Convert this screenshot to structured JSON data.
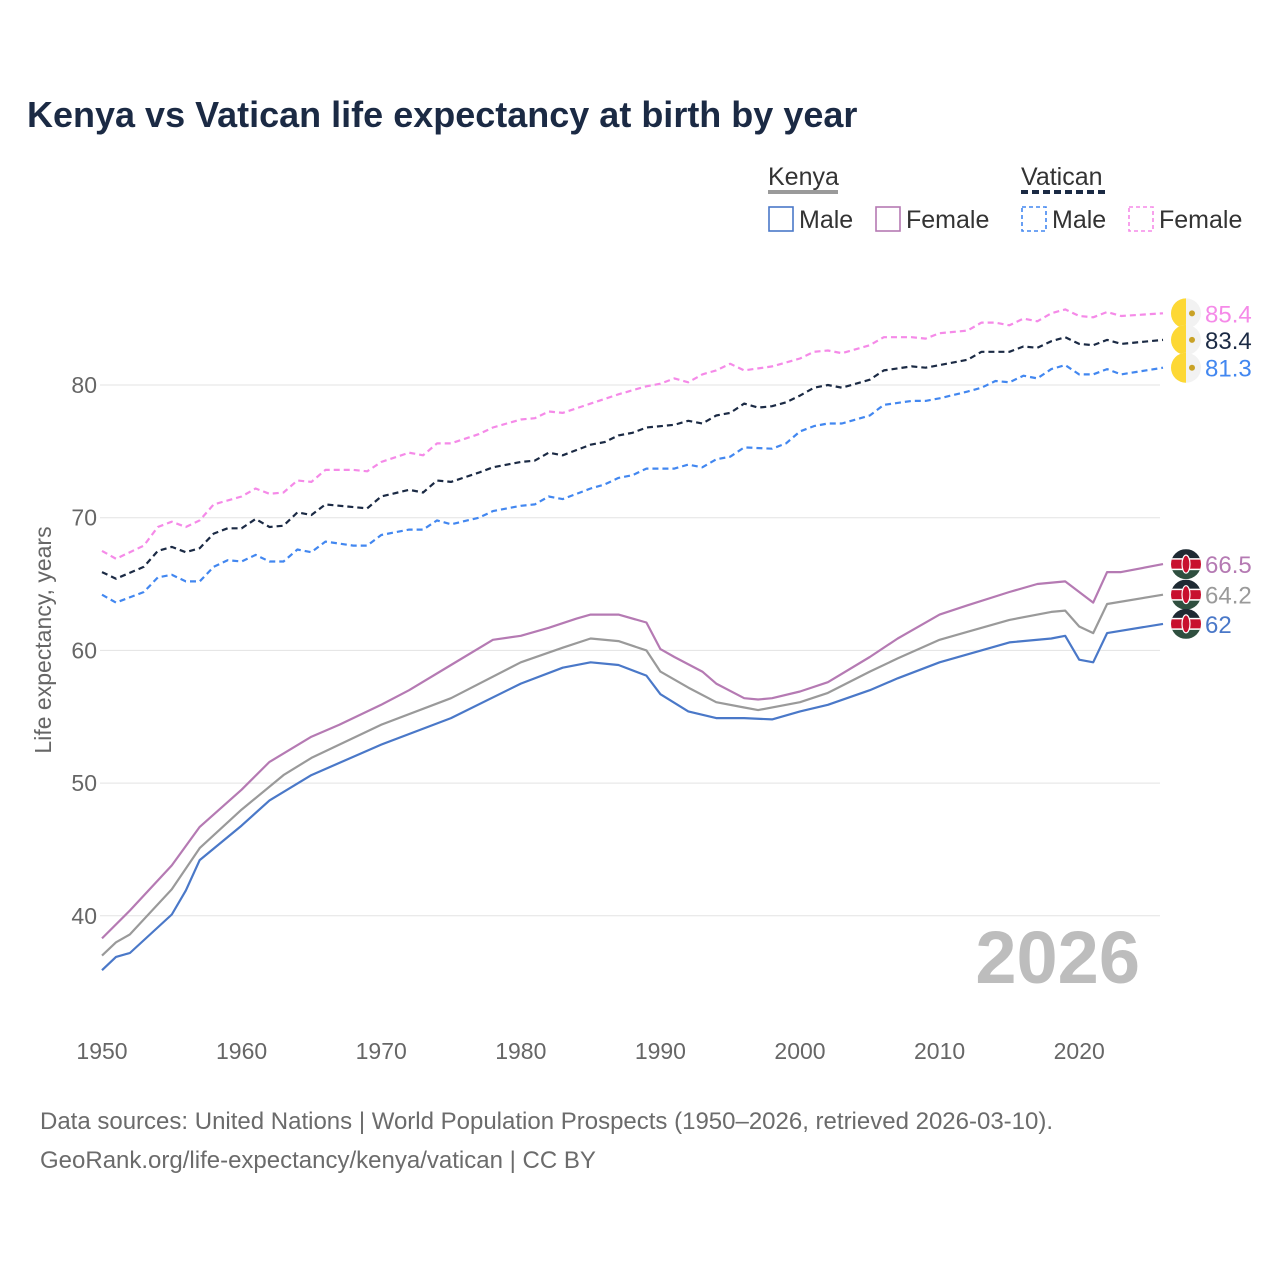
{
  "chart_data": {
    "type": "line",
    "title": "Kenya vs Vatican life expectancy at birth by year",
    "xlabel": "",
    "ylabel": "Life expectancy, years",
    "xlim": [
      1950,
      2026
    ],
    "ylim": [
      34.5,
      87
    ],
    "xticks": [
      "1950",
      "1960",
      "1970",
      "1980",
      "1990",
      "2000",
      "2010",
      "2020"
    ],
    "yticks": [
      "40",
      "50",
      "60",
      "70",
      "80"
    ],
    "grid": true,
    "year_watermark": "2026",
    "legend": {
      "placement": "top-right",
      "groups": [
        {
          "name": "Kenya",
          "items": [
            "Male",
            "Female"
          ]
        },
        {
          "name": "Vatican",
          "items": [
            "Male",
            "Female"
          ]
        }
      ]
    },
    "series": [
      {
        "name": "Vatican Female",
        "color": "#f58ae8",
        "dashed": true,
        "end_label": "85.4",
        "flag": "vatican",
        "points": [
          [
            1950,
            67.5
          ],
          [
            1951,
            66.9
          ],
          [
            1953,
            67.9
          ],
          [
            1954,
            69.3
          ],
          [
            1955,
            69.7
          ],
          [
            1956,
            69.3
          ],
          [
            1957,
            69.8
          ],
          [
            1958,
            71.0
          ],
          [
            1960,
            71.6
          ],
          [
            1961,
            72.2
          ],
          [
            1962,
            71.8
          ],
          [
            1963,
            71.9
          ],
          [
            1964,
            72.8
          ],
          [
            1965,
            72.7
          ],
          [
            1966,
            73.6
          ],
          [
            1968,
            73.6
          ],
          [
            1969,
            73.5
          ],
          [
            1970,
            74.2
          ],
          [
            1972,
            74.9
          ],
          [
            1973,
            74.7
          ],
          [
            1974,
            75.6
          ],
          [
            1975,
            75.6
          ],
          [
            1977,
            76.3
          ],
          [
            1978,
            76.8
          ],
          [
            1979,
            77.1
          ],
          [
            1980,
            77.4
          ],
          [
            1981,
            77.5
          ],
          [
            1982,
            78.0
          ],
          [
            1983,
            77.9
          ],
          [
            1985,
            78.6
          ],
          [
            1987,
            79.3
          ],
          [
            1989,
            79.9
          ],
          [
            1990,
            80.1
          ],
          [
            1991,
            80.5
          ],
          [
            1992,
            80.2
          ],
          [
            1993,
            80.8
          ],
          [
            1994,
            81.1
          ],
          [
            1995,
            81.6
          ],
          [
            1996,
            81.1
          ],
          [
            1998,
            81.4
          ],
          [
            2000,
            82.0
          ],
          [
            2001,
            82.5
          ],
          [
            2002,
            82.6
          ],
          [
            2003,
            82.4
          ],
          [
            2005,
            83.0
          ],
          [
            2006,
            83.6
          ],
          [
            2008,
            83.6
          ],
          [
            2009,
            83.5
          ],
          [
            2010,
            83.9
          ],
          [
            2012,
            84.1
          ],
          [
            2013,
            84.7
          ],
          [
            2014,
            84.7
          ],
          [
            2015,
            84.5
          ],
          [
            2016,
            85.0
          ],
          [
            2017,
            84.8
          ],
          [
            2018,
            85.4
          ],
          [
            2019,
            85.7
          ],
          [
            2020,
            85.2
          ],
          [
            2021,
            85.1
          ],
          [
            2022,
            85.5
          ],
          [
            2023,
            85.2
          ],
          [
            2026,
            85.4
          ]
        ]
      },
      {
        "name": "Vatican",
        "color": "#1b2a44",
        "dashed": true,
        "end_label": "83.4",
        "flag": "vatican",
        "points": [
          [
            1950,
            65.9
          ],
          [
            1951,
            65.4
          ],
          [
            1953,
            66.3
          ],
          [
            1954,
            67.5
          ],
          [
            1955,
            67.8
          ],
          [
            1956,
            67.4
          ],
          [
            1957,
            67.7
          ],
          [
            1958,
            68.8
          ],
          [
            1959,
            69.2
          ],
          [
            1960,
            69.2
          ],
          [
            1961,
            69.9
          ],
          [
            1962,
            69.3
          ],
          [
            1963,
            69.4
          ],
          [
            1964,
            70.4
          ],
          [
            1965,
            70.2
          ],
          [
            1966,
            71.0
          ],
          [
            1969,
            70.7
          ],
          [
            1970,
            71.6
          ],
          [
            1972,
            72.1
          ],
          [
            1973,
            71.9
          ],
          [
            1974,
            72.8
          ],
          [
            1975,
            72.7
          ],
          [
            1977,
            73.4
          ],
          [
            1978,
            73.8
          ],
          [
            1980,
            74.2
          ],
          [
            1981,
            74.3
          ],
          [
            1982,
            74.9
          ],
          [
            1983,
            74.7
          ],
          [
            1985,
            75.5
          ],
          [
            1986,
            75.7
          ],
          [
            1987,
            76.2
          ],
          [
            1988,
            76.4
          ],
          [
            1989,
            76.8
          ],
          [
            1991,
            77.0
          ],
          [
            1992,
            77.3
          ],
          [
            1993,
            77.1
          ],
          [
            1994,
            77.7
          ],
          [
            1995,
            77.9
          ],
          [
            1996,
            78.6
          ],
          [
            1997,
            78.3
          ],
          [
            1998,
            78.4
          ],
          [
            1999,
            78.7
          ],
          [
            2000,
            79.2
          ],
          [
            2001,
            79.8
          ],
          [
            2002,
            80.0
          ],
          [
            2003,
            79.8
          ],
          [
            2005,
            80.4
          ],
          [
            2006,
            81.1
          ],
          [
            2008,
            81.4
          ],
          [
            2009,
            81.3
          ],
          [
            2010,
            81.5
          ],
          [
            2012,
            81.9
          ],
          [
            2013,
            82.5
          ],
          [
            2015,
            82.5
          ],
          [
            2016,
            82.9
          ],
          [
            2017,
            82.8
          ],
          [
            2018,
            83.3
          ],
          [
            2019,
            83.6
          ],
          [
            2020,
            83.1
          ],
          [
            2021,
            83.0
          ],
          [
            2022,
            83.4
          ],
          [
            2023,
            83.1
          ],
          [
            2026,
            83.4
          ]
        ]
      },
      {
        "name": "Vatican Male",
        "color": "#4287f0",
        "dashed": true,
        "end_label": "81.3",
        "flag": "vatican",
        "points": [
          [
            1950,
            64.2
          ],
          [
            1951,
            63.6
          ],
          [
            1953,
            64.4
          ],
          [
            1954,
            65.5
          ],
          [
            1955,
            65.7
          ],
          [
            1956,
            65.2
          ],
          [
            1957,
            65.2
          ],
          [
            1958,
            66.3
          ],
          [
            1959,
            66.8
          ],
          [
            1960,
            66.7
          ],
          [
            1961,
            67.2
          ],
          [
            1962,
            66.7
          ],
          [
            1963,
            66.7
          ],
          [
            1964,
            67.6
          ],
          [
            1965,
            67.4
          ],
          [
            1966,
            68.2
          ],
          [
            1968,
            67.9
          ],
          [
            1969,
            67.9
          ],
          [
            1970,
            68.7
          ],
          [
            1972,
            69.1
          ],
          [
            1973,
            69.1
          ],
          [
            1974,
            69.8
          ],
          [
            1975,
            69.5
          ],
          [
            1977,
            70.0
          ],
          [
            1978,
            70.5
          ],
          [
            1980,
            70.9
          ],
          [
            1981,
            71.0
          ],
          [
            1982,
            71.6
          ],
          [
            1983,
            71.4
          ],
          [
            1985,
            72.2
          ],
          [
            1986,
            72.5
          ],
          [
            1987,
            73.0
          ],
          [
            1988,
            73.2
          ],
          [
            1989,
            73.7
          ],
          [
            1991,
            73.7
          ],
          [
            1992,
            74.0
          ],
          [
            1993,
            73.8
          ],
          [
            1994,
            74.4
          ],
          [
            1995,
            74.6
          ],
          [
            1996,
            75.3
          ],
          [
            1998,
            75.2
          ],
          [
            1999,
            75.6
          ],
          [
            2000,
            76.5
          ],
          [
            2001,
            76.9
          ],
          [
            2002,
            77.1
          ],
          [
            2003,
            77.1
          ],
          [
            2005,
            77.7
          ],
          [
            2006,
            78.5
          ],
          [
            2008,
            78.8
          ],
          [
            2009,
            78.8
          ],
          [
            2010,
            79.0
          ],
          [
            2012,
            79.5
          ],
          [
            2013,
            79.8
          ],
          [
            2014,
            80.3
          ],
          [
            2015,
            80.2
          ],
          [
            2016,
            80.7
          ],
          [
            2017,
            80.5
          ],
          [
            2018,
            81.2
          ],
          [
            2019,
            81.5
          ],
          [
            2020,
            80.8
          ],
          [
            2021,
            80.8
          ],
          [
            2022,
            81.2
          ],
          [
            2023,
            80.8
          ],
          [
            2026,
            81.3
          ]
        ]
      },
      {
        "name": "Kenya Female",
        "color": "#b57ab3",
        "dashed": false,
        "end_label": "66.5",
        "flag": "kenya",
        "points": [
          [
            1950,
            38.3
          ],
          [
            1952,
            40.4
          ],
          [
            1955,
            43.8
          ],
          [
            1957,
            46.7
          ],
          [
            1960,
            49.5
          ],
          [
            1962,
            51.6
          ],
          [
            1965,
            53.5
          ],
          [
            1967,
            54.4
          ],
          [
            1970,
            55.9
          ],
          [
            1972,
            57.0
          ],
          [
            1975,
            58.9
          ],
          [
            1978,
            60.8
          ],
          [
            1980,
            61.1
          ],
          [
            1982,
            61.7
          ],
          [
            1984,
            62.4
          ],
          [
            1985,
            62.7
          ],
          [
            1987,
            62.7
          ],
          [
            1989,
            62.1
          ],
          [
            1990,
            60.1
          ],
          [
            1991,
            59.5
          ],
          [
            1993,
            58.4
          ],
          [
            1994,
            57.5
          ],
          [
            1996,
            56.4
          ],
          [
            1997,
            56.3
          ],
          [
            1998,
            56.4
          ],
          [
            2000,
            56.9
          ],
          [
            2002,
            57.6
          ],
          [
            2005,
            59.5
          ],
          [
            2007,
            60.9
          ],
          [
            2010,
            62.7
          ],
          [
            2012,
            63.4
          ],
          [
            2015,
            64.4
          ],
          [
            2017,
            65.0
          ],
          [
            2019,
            65.2
          ],
          [
            2020,
            64.4
          ],
          [
            2021,
            63.6
          ],
          [
            2022,
            65.9
          ],
          [
            2023,
            65.9
          ],
          [
            2026,
            66.5
          ]
        ]
      },
      {
        "name": "Kenya",
        "color": "#9a9a9a",
        "dashed": false,
        "end_label": "64.2",
        "flag": "kenya",
        "points": [
          [
            1950,
            37.0
          ],
          [
            1951,
            38.0
          ],
          [
            1952,
            38.6
          ],
          [
            1955,
            42.0
          ],
          [
            1957,
            45.1
          ],
          [
            1960,
            48.0
          ],
          [
            1963,
            50.6
          ],
          [
            1965,
            51.9
          ],
          [
            1970,
            54.4
          ],
          [
            1975,
            56.4
          ],
          [
            1980,
            59.1
          ],
          [
            1983,
            60.2
          ],
          [
            1985,
            60.9
          ],
          [
            1987,
            60.7
          ],
          [
            1989,
            60.0
          ],
          [
            1990,
            58.4
          ],
          [
            1992,
            57.2
          ],
          [
            1994,
            56.1
          ],
          [
            1996,
            55.7
          ],
          [
            1997,
            55.5
          ],
          [
            2000,
            56.1
          ],
          [
            2002,
            56.8
          ],
          [
            2005,
            58.4
          ],
          [
            2007,
            59.4
          ],
          [
            2010,
            60.8
          ],
          [
            2012,
            61.4
          ],
          [
            2015,
            62.3
          ],
          [
            2018,
            62.9
          ],
          [
            2019,
            63.0
          ],
          [
            2020,
            61.8
          ],
          [
            2021,
            61.3
          ],
          [
            2022,
            63.5
          ],
          [
            2026,
            64.2
          ]
        ]
      },
      {
        "name": "Kenya Male",
        "color": "#4a78c8",
        "dashed": false,
        "end_label": "62",
        "flag": "kenya",
        "points": [
          [
            1950,
            35.9
          ],
          [
            1951,
            36.9
          ],
          [
            1952,
            37.2
          ],
          [
            1955,
            40.1
          ],
          [
            1956,
            41.9
          ],
          [
            1957,
            44.2
          ],
          [
            1960,
            46.8
          ],
          [
            1962,
            48.7
          ],
          [
            1965,
            50.6
          ],
          [
            1970,
            52.9
          ],
          [
            1975,
            54.9
          ],
          [
            1980,
            57.5
          ],
          [
            1983,
            58.7
          ],
          [
            1985,
            59.1
          ],
          [
            1987,
            58.9
          ],
          [
            1989,
            58.1
          ],
          [
            1990,
            56.7
          ],
          [
            1992,
            55.4
          ],
          [
            1994,
            54.9
          ],
          [
            1996,
            54.9
          ],
          [
            1998,
            54.8
          ],
          [
            2000,
            55.4
          ],
          [
            2002,
            55.9
          ],
          [
            2005,
            57.0
          ],
          [
            2007,
            57.9
          ],
          [
            2010,
            59.1
          ],
          [
            2015,
            60.6
          ],
          [
            2018,
            60.9
          ],
          [
            2019,
            61.1
          ],
          [
            2020,
            59.3
          ],
          [
            2021,
            59.1
          ],
          [
            2022,
            61.3
          ],
          [
            2026,
            62.0
          ]
        ]
      }
    ]
  },
  "footer": {
    "line1": "Data sources: United Nations | World Population Prospects (1950–2026, retrieved 2026-03-10).",
    "line2": "GeoRank.org/life-expectancy/kenya/vatican | CC BY"
  }
}
